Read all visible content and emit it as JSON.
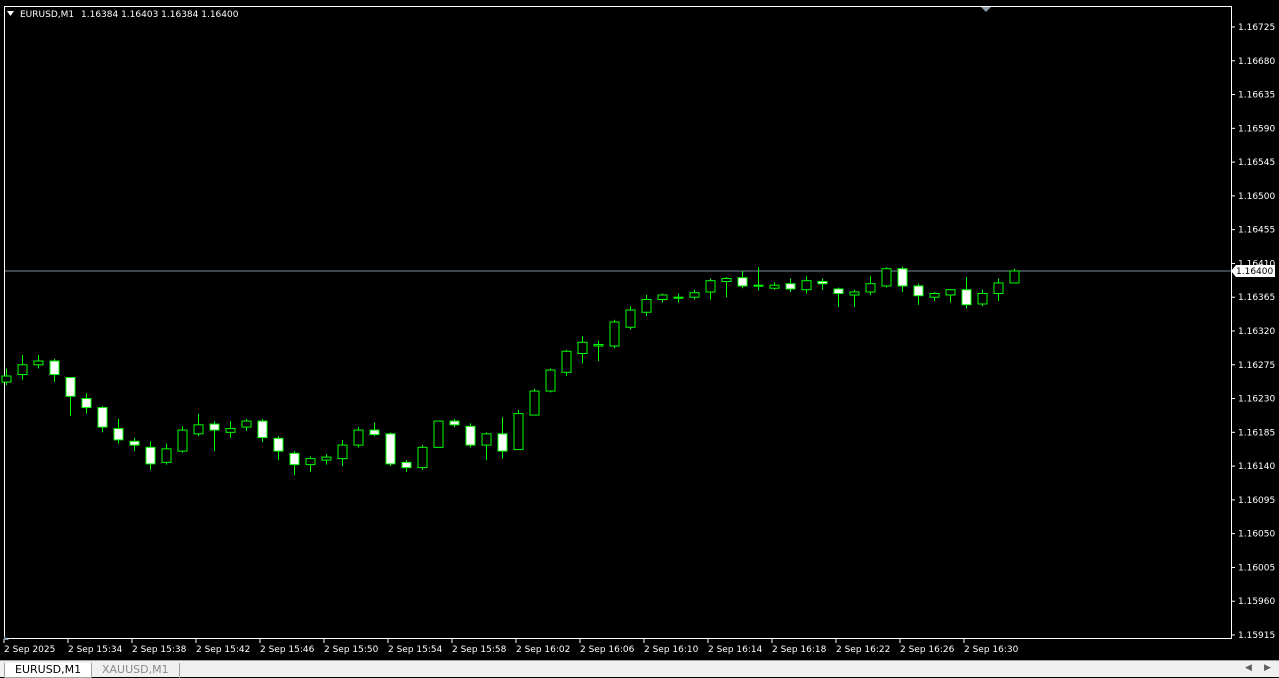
{
  "header": {
    "symbol_label": "EURUSD,M1",
    "ohlc_label": "1.16384 1.16403 1.16384 1.16400"
  },
  "tabs": [
    {
      "label": "EURUSD,M1",
      "active": true
    },
    {
      "label": "XAUUSD,M1",
      "active": false
    }
  ],
  "colors": {
    "background": "#000000",
    "bull_candle_outline": "#00ff00",
    "bear_candle_fill": "#ffffff",
    "axis_color": "#ffffff",
    "bid_line": "#778899"
  },
  "chart_data": {
    "type": "candlestick",
    "symbol": "EURUSD",
    "timeframe": "M1",
    "ylim": [
      1.1591,
      1.1675
    ],
    "y_ticks": [
      "1.16725",
      "1.16680",
      "1.16635",
      "1.16590",
      "1.16545",
      "1.16500",
      "1.16455",
      "1.16410",
      "1.16365",
      "1.16320",
      "1.16275",
      "1.16230",
      "1.16185",
      "1.16140",
      "1.16095",
      "1.16050",
      "1.16005",
      "1.15960",
      "1.15915"
    ],
    "x_labels": [
      "2 Sep 2025",
      "2 Sep 15:34",
      "2 Sep 15:38",
      "2 Sep 15:42",
      "2 Sep 15:46",
      "2 Sep 15:50",
      "2 Sep 15:54",
      "2 Sep 15:58",
      "2 Sep 16:02",
      "2 Sep 16:06",
      "2 Sep 16:10",
      "2 Sep 16:14",
      "2 Sep 16:18",
      "2 Sep 16:22",
      "2 Sep 16:26",
      "2 Sep 16:30"
    ],
    "current_price": "1.16400",
    "candles": [
      {
        "o": 1.16252,
        "h": 1.1627,
        "l": 1.16248,
        "c": 1.1626
      },
      {
        "o": 1.16262,
        "h": 1.16288,
        "l": 1.16255,
        "c": 1.16275
      },
      {
        "o": 1.16275,
        "h": 1.16288,
        "l": 1.1627,
        "c": 1.1628
      },
      {
        "o": 1.1628,
        "h": 1.16283,
        "l": 1.16252,
        "c": 1.16262
      },
      {
        "o": 1.16258,
        "h": 1.16258,
        "l": 1.16207,
        "c": 1.16233
      },
      {
        "o": 1.1623,
        "h": 1.16237,
        "l": 1.1621,
        "c": 1.16218
      },
      {
        "o": 1.16218,
        "h": 1.1622,
        "l": 1.16185,
        "c": 1.16192
      },
      {
        "o": 1.1619,
        "h": 1.16203,
        "l": 1.1617,
        "c": 1.16175
      },
      {
        "o": 1.16173,
        "h": 1.16178,
        "l": 1.1616,
        "c": 1.16168
      },
      {
        "o": 1.16165,
        "h": 1.16173,
        "l": 1.16135,
        "c": 1.16143
      },
      {
        "o": 1.16145,
        "h": 1.1617,
        "l": 1.16142,
        "c": 1.16163
      },
      {
        "o": 1.1616,
        "h": 1.16193,
        "l": 1.16158,
        "c": 1.16188
      },
      {
        "o": 1.16183,
        "h": 1.1621,
        "l": 1.1618,
        "c": 1.16195
      },
      {
        "o": 1.16196,
        "h": 1.162,
        "l": 1.1616,
        "c": 1.16188
      },
      {
        "o": 1.16185,
        "h": 1.162,
        "l": 1.16178,
        "c": 1.1619
      },
      {
        "o": 1.16192,
        "h": 1.16203,
        "l": 1.16187,
        "c": 1.162
      },
      {
        "o": 1.162,
        "h": 1.16203,
        "l": 1.16172,
        "c": 1.16178
      },
      {
        "o": 1.16177,
        "h": 1.1618,
        "l": 1.16148,
        "c": 1.1616
      },
      {
        "o": 1.16157,
        "h": 1.1616,
        "l": 1.16128,
        "c": 1.16142
      },
      {
        "o": 1.16142,
        "h": 1.16153,
        "l": 1.16132,
        "c": 1.1615
      },
      {
        "o": 1.16148,
        "h": 1.16156,
        "l": 1.16142,
        "c": 1.16152
      },
      {
        "o": 1.1615,
        "h": 1.16175,
        "l": 1.1614,
        "c": 1.16168
      },
      {
        "o": 1.16168,
        "h": 1.16192,
        "l": 1.16165,
        "c": 1.16188
      },
      {
        "o": 1.16188,
        "h": 1.16198,
        "l": 1.1618,
        "c": 1.16182
      },
      {
        "o": 1.16183,
        "h": 1.16185,
        "l": 1.1614,
        "c": 1.16143
      },
      {
        "o": 1.16145,
        "h": 1.16148,
        "l": 1.16132,
        "c": 1.16138
      },
      {
        "o": 1.16138,
        "h": 1.16168,
        "l": 1.16135,
        "c": 1.16165
      },
      {
        "o": 1.16165,
        "h": 1.162,
        "l": 1.16165,
        "c": 1.162
      },
      {
        "o": 1.162,
        "h": 1.16203,
        "l": 1.16192,
        "c": 1.16195
      },
      {
        "o": 1.16193,
        "h": 1.16197,
        "l": 1.16165,
        "c": 1.16168
      },
      {
        "o": 1.16168,
        "h": 1.16185,
        "l": 1.16148,
        "c": 1.16183
      },
      {
        "o": 1.16183,
        "h": 1.16205,
        "l": 1.1615,
        "c": 1.1616
      },
      {
        "o": 1.16162,
        "h": 1.16215,
        "l": 1.16162,
        "c": 1.1621
      },
      {
        "o": 1.16208,
        "h": 1.16243,
        "l": 1.16208,
        "c": 1.1624
      },
      {
        "o": 1.1624,
        "h": 1.1627,
        "l": 1.16238,
        "c": 1.16268
      },
      {
        "o": 1.16265,
        "h": 1.16295,
        "l": 1.1626,
        "c": 1.16293
      },
      {
        "o": 1.1629,
        "h": 1.16313,
        "l": 1.16277,
        "c": 1.16305
      },
      {
        "o": 1.163,
        "h": 1.16307,
        "l": 1.1628,
        "c": 1.16302
      },
      {
        "o": 1.163,
        "h": 1.16335,
        "l": 1.16297,
        "c": 1.16332
      },
      {
        "o": 1.16325,
        "h": 1.16353,
        "l": 1.16322,
        "c": 1.16348
      },
      {
        "o": 1.16345,
        "h": 1.16368,
        "l": 1.1634,
        "c": 1.16362
      },
      {
        "o": 1.16362,
        "h": 1.1637,
        "l": 1.16358,
        "c": 1.16368
      },
      {
        "o": 1.16365,
        "h": 1.1637,
        "l": 1.16358,
        "c": 1.16365
      },
      {
        "o": 1.16365,
        "h": 1.16375,
        "l": 1.16362,
        "c": 1.16371
      },
      {
        "o": 1.16372,
        "h": 1.1639,
        "l": 1.16362,
        "c": 1.16387
      },
      {
        "o": 1.16386,
        "h": 1.16392,
        "l": 1.16365,
        "c": 1.1639
      },
      {
        "o": 1.16391,
        "h": 1.164,
        "l": 1.16377,
        "c": 1.1638
      },
      {
        "o": 1.1638,
        "h": 1.16405,
        "l": 1.16374,
        "c": 1.16381
      },
      {
        "o": 1.16377,
        "h": 1.16385,
        "l": 1.16375,
        "c": 1.16381
      },
      {
        "o": 1.16383,
        "h": 1.1639,
        "l": 1.16372,
        "c": 1.16376
      },
      {
        "o": 1.16375,
        "h": 1.16393,
        "l": 1.1637,
        "c": 1.16387
      },
      {
        "o": 1.16386,
        "h": 1.1639,
        "l": 1.16375,
        "c": 1.16383
      },
      {
        "o": 1.16376,
        "h": 1.16378,
        "l": 1.16352,
        "c": 1.1637
      },
      {
        "o": 1.16368,
        "h": 1.16375,
        "l": 1.16352,
        "c": 1.16372
      },
      {
        "o": 1.16372,
        "h": 1.16393,
        "l": 1.16368,
        "c": 1.16383
      },
      {
        "o": 1.1638,
        "h": 1.16405,
        "l": 1.16378,
        "c": 1.16403
      },
      {
        "o": 1.16403,
        "h": 1.16406,
        "l": 1.16372,
        "c": 1.1638
      },
      {
        "o": 1.1638,
        "h": 1.16383,
        "l": 1.16355,
        "c": 1.16367
      },
      {
        "o": 1.16365,
        "h": 1.16372,
        "l": 1.1636,
        "c": 1.1637
      },
      {
        "o": 1.16368,
        "h": 1.16376,
        "l": 1.16358,
        "c": 1.16375
      },
      {
        "o": 1.16375,
        "h": 1.16392,
        "l": 1.1635,
        "c": 1.16355
      },
      {
        "o": 1.16356,
        "h": 1.16375,
        "l": 1.16353,
        "c": 1.1637
      },
      {
        "o": 1.1637,
        "h": 1.1639,
        "l": 1.1636,
        "c": 1.16384
      },
      {
        "o": 1.16384,
        "h": 1.16403,
        "l": 1.16384,
        "c": 1.164
      }
    ]
  }
}
